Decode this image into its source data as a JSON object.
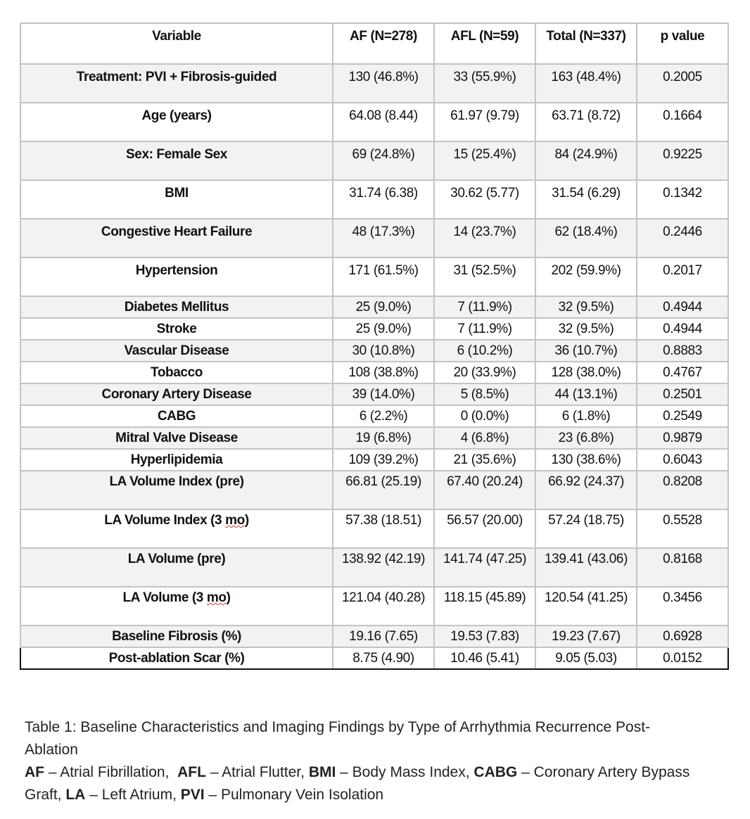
{
  "table": {
    "headers": [
      "Variable",
      "AF (N=278)",
      "AFL (N=59)",
      "Total (N=337)",
      "p value"
    ],
    "rows": [
      {
        "variable": "Treatment: PVI + Fibrosis-guided",
        "af": "130 (46.8%)",
        "afl": "33 (55.9%)",
        "total": "163 (48.4%)",
        "p": "0.2005"
      },
      {
        "variable": "Age (years)",
        "af": "64.08 (8.44)",
        "afl": "61.97 (9.79)",
        "total": "63.71 (8.72)",
        "p": "0.1664"
      },
      {
        "variable": "Sex: Female Sex",
        "af": "69 (24.8%)",
        "afl": "15 (25.4%)",
        "total": "84 (24.9%)",
        "p": "0.9225"
      },
      {
        "variable": "BMI",
        "af": "31.74 (6.38)",
        "afl": "30.62 (5.77)",
        "total": "31.54 (6.29)",
        "p": "0.1342"
      },
      {
        "variable": "Congestive Heart Failure",
        "af": "48 (17.3%)",
        "afl": "14 (23.7%)",
        "total": "62 (18.4%)",
        "p": "0.2446"
      },
      {
        "variable": "Hypertension",
        "af": "171 (61.5%)",
        "afl": "31 (52.5%)",
        "total": "202 (59.9%)",
        "p": "0.2017"
      },
      {
        "variable": "Diabetes Mellitus",
        "af": "25 (9.0%)",
        "afl": "7 (11.9%)",
        "total": "32 (9.5%)",
        "p": "0.4944"
      },
      {
        "variable": "Stroke",
        "af": "25 (9.0%)",
        "afl": "7 (11.9%)",
        "total": "32 (9.5%)",
        "p": "0.4944"
      },
      {
        "variable": "Vascular Disease",
        "af": "30 (10.8%)",
        "afl": "6 (10.2%)",
        "total": "36 (10.7%)",
        "p": "0.8883"
      },
      {
        "variable": "Tobacco",
        "af": "108 (38.8%)",
        "afl": "20 (33.9%)",
        "total": "128 (38.0%)",
        "p": "0.4767"
      },
      {
        "variable": "Coronary Artery Disease",
        "af": "39 (14.0%)",
        "afl": "5 (8.5%)",
        "total": "44 (13.1%)",
        "p": "0.2501"
      },
      {
        "variable": "CABG",
        "af": "6 (2.2%)",
        "afl": "0 (0.0%)",
        "total": "6 (1.8%)",
        "p": "0.2549"
      },
      {
        "variable": "Mitral Valve Disease",
        "af": "19 (6.8%)",
        "afl": "4 (6.8%)",
        "total": "23 (6.8%)",
        "p": "0.9879"
      },
      {
        "variable": "Hyperlipidemia",
        "af": "109 (39.2%)",
        "afl": "21 (35.6%)",
        "total": "130 (38.6%)",
        "p": "0.6043"
      },
      {
        "variable": "LA Volume Index (pre)",
        "af": "66.81 (25.19)",
        "afl": "67.40 (20.24)",
        "total": "66.92 (24.37)",
        "p": "0.8208"
      },
      {
        "variable_pre": "LA Volume Index (3 ",
        "variable_sq": "mo",
        "variable_post": ")",
        "af": "57.38 (18.51)",
        "afl": "56.57 (20.00)",
        "total": "57.24 (18.75)",
        "p": "0.5528"
      },
      {
        "variable": "LA Volume (pre)",
        "af": "138.92 (42.19)",
        "afl": "141.74 (47.25)",
        "total": "139.41 (43.06)",
        "p": "0.8168"
      },
      {
        "variable_pre": "LA Volume (3 ",
        "variable_sq": "mo",
        "variable_post": ")",
        "af": "121.04 (40.28)",
        "afl": "118.15 (45.89)",
        "total": "120.54 (41.25)",
        "p": "0.3456"
      },
      {
        "variable": "Baseline Fibrosis (%)",
        "af": "19.16 (7.65)",
        "afl": "19.53 (7.83)",
        "total": "19.23 (7.67)",
        "p": "0.6928"
      },
      {
        "variable": "Post-ablation Scar (%)",
        "af": "8.75 (4.90)",
        "afl": "10.46 (5.41)",
        "total": "9.05 (5.03)",
        "p": "0.0152"
      }
    ]
  },
  "caption": {
    "title": "Table 1: Baseline Characteristics and Imaging Findings by Type of Arrhythmia Recurrence Post-Ablation",
    "abbreviations": [
      {
        "abbr": "AF",
        "def": " – Atrial Fibrillation,  "
      },
      {
        "abbr": "AFL",
        "def": " – Atrial Flutter, "
      },
      {
        "abbr": "BMI",
        "def": " – Body Mass Index, "
      },
      {
        "abbr": "CABG",
        "def": " – Coronary Artery Bypass Graft, "
      },
      {
        "abbr": "LA",
        "def": " – Left Atrium, "
      },
      {
        "abbr": "PVI",
        "def": " – Pulmonary Vein Isolation"
      }
    ]
  }
}
